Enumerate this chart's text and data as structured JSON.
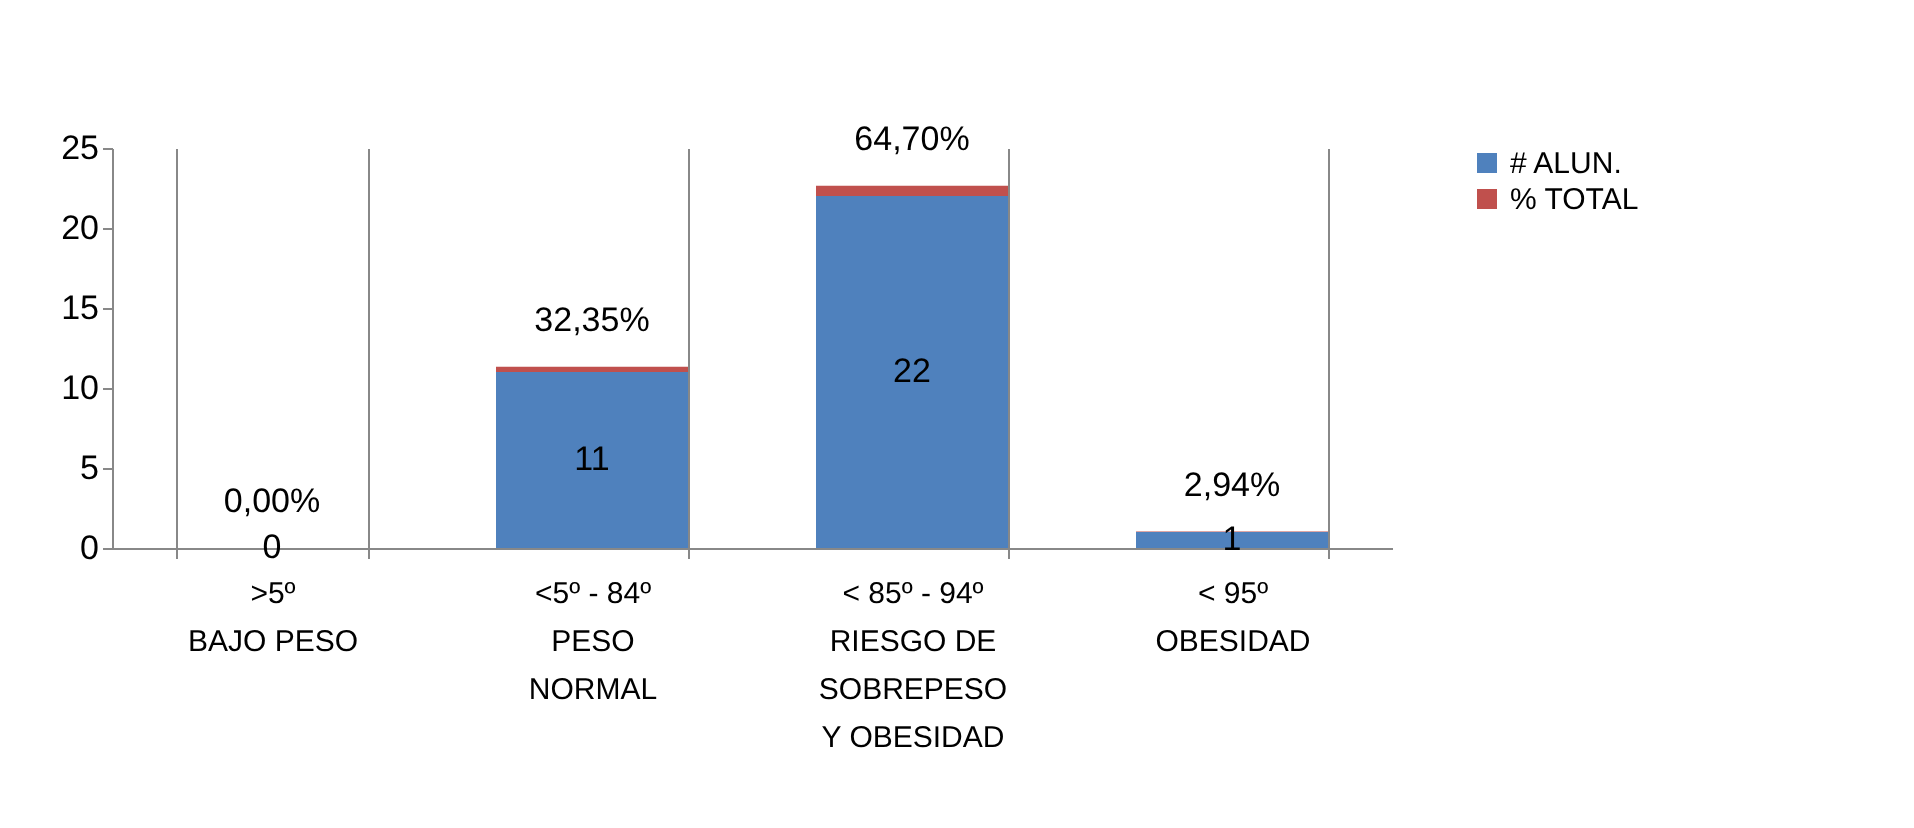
{
  "chart_data": {
    "type": "bar",
    "stacked": true,
    "categories": [
      ">5º\nBAJO PESO",
      "<5º  - 84º\nPESO\nNORMAL",
      "< 85º  -  94º\nRIESGO DE\nSOBREPESO\nY OBESIDAD",
      "< 95º\nOBESIDAD"
    ],
    "series": [
      {
        "name": "# ALUN.",
        "color": "#4f81bd",
        "values": [
          0,
          11,
          22,
          1
        ],
        "value_labels": [
          "0",
          "11",
          "22",
          "1"
        ]
      },
      {
        "name": "% TOTAL",
        "color": "#c0504d",
        "values": [
          0,
          0.3235,
          0.647,
          0.0294
        ],
        "value_labels": [
          "0,00%",
          "32,35%",
          "64,70%",
          "2,94%"
        ]
      }
    ],
    "ylim": [
      0,
      25
    ],
    "yticks": [
      0,
      5,
      10,
      15,
      20,
      25
    ],
    "grid": false,
    "legend": "right"
  }
}
